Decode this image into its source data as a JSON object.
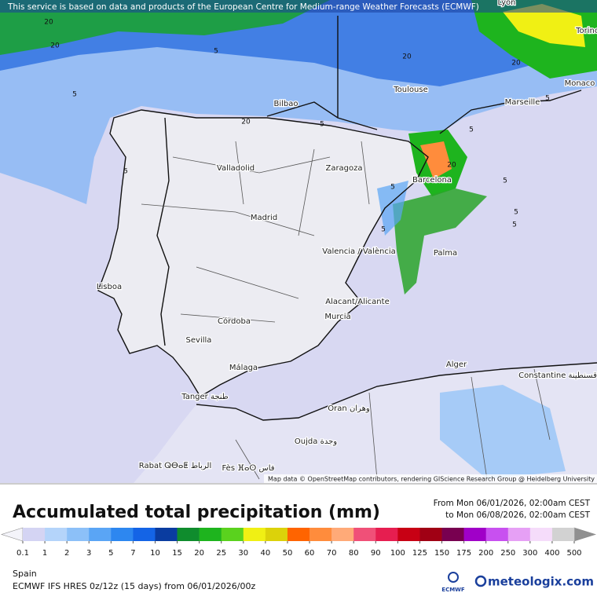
{
  "header": {
    "notice": "This service is based on data and products of the European Centre for Medium-range Weather Forecasts (ECMWF)"
  },
  "map": {
    "cities": [
      "Lyon",
      "Torino",
      "Monaco",
      "Toulouse",
      "Marseille",
      "Bilbao",
      "Valladolid",
      "Zaragoza",
      "Barcelona",
      "Madrid",
      "Valencia / València",
      "Palma",
      "Lisboa",
      "Alacant/Alicante",
      "Murcia",
      "Córdoba",
      "Sevilla",
      "Málaga",
      "Alger",
      "Constantine قسنطينة",
      "Tanger طنجة",
      "Oran وهران",
      "Oujda وجدة",
      "Rabat ⵕⴱⴰⵟ الرباط",
      "Fès ⴼⴰⵙ فاس"
    ],
    "contour_labels": [
      20,
      20,
      20,
      20,
      20,
      20,
      5,
      5,
      5,
      5,
      5,
      5,
      5,
      5,
      5,
      5,
      5
    ],
    "attribution": "Map data © OpenStreetMap contributors, rendering GIScience Research Group @ Heidelberg University"
  },
  "footer": {
    "title": "Accumulated total precipitation (mm)",
    "period_from": "From Mon 06/01/2026, 02:00am CEST",
    "period_to": "to Mon 06/08/2026, 02:00am CEST",
    "legend": {
      "ticks": [
        0.1,
        1,
        2,
        3,
        5,
        7,
        10,
        15,
        20,
        25,
        30,
        40,
        50,
        60,
        70,
        80,
        90,
        100,
        125,
        150,
        175,
        200,
        250,
        300,
        400,
        500
      ],
      "colors": [
        "#d4d4f3",
        "#b4d4fa",
        "#8cc0f8",
        "#5aa5f5",
        "#2d87f0",
        "#1464e6",
        "#0a3ca0",
        "#0f8c2d",
        "#1eb41e",
        "#5ad21e",
        "#f0f014",
        "#dcd20a",
        "#ff6400",
        "#ff8c3c",
        "#ffaa78",
        "#f05078",
        "#e61e50",
        "#c80014",
        "#a00014",
        "#780050",
        "#a000c8",
        "#c850f0",
        "#e6a0f5",
        "#f5dcfa",
        "#d2d2d2"
      ]
    },
    "region": "Spain",
    "model": "ECMWF IFS HRES 0z/12z (15 days) from 06/01/2026/00z",
    "ecmwf": "ECMWF",
    "brand": "meteologix.com"
  }
}
